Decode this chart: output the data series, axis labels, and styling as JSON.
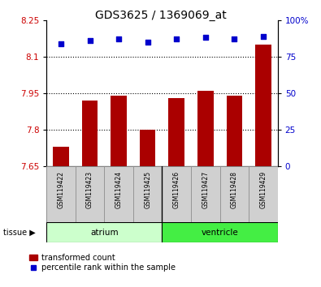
{
  "title": "GDS3625 / 1369069_at",
  "samples": [
    "GSM119422",
    "GSM119423",
    "GSM119424",
    "GSM119425",
    "GSM119426",
    "GSM119427",
    "GSM119428",
    "GSM119429"
  ],
  "transformed_count": [
    7.73,
    7.92,
    7.94,
    7.8,
    7.93,
    7.96,
    7.94,
    8.15
  ],
  "percentile_rank": [
    84,
    86,
    87,
    85,
    87,
    88,
    87,
    89
  ],
  "ylim_left": [
    7.65,
    8.25
  ],
  "ylim_right": [
    0,
    100
  ],
  "yticks_left": [
    7.65,
    7.8,
    7.95,
    8.1,
    8.25
  ],
  "yticks_right": [
    0,
    25,
    50,
    75,
    100
  ],
  "ytick_labels_left": [
    "7.65",
    "7.8",
    "7.95",
    "8.1",
    "8.25"
  ],
  "ytick_labels_right": [
    "0",
    "25",
    "50",
    "75",
    "100%"
  ],
  "bar_color": "#aa0000",
  "dot_color": "#0000cc",
  "bar_bottom": 7.65,
  "atrium_color": "#ccffcc",
  "ventricle_color": "#44ee44",
  "legend_bar_label": "transformed count",
  "legend_dot_label": "percentile rank within the sample",
  "tick_label_color_left": "#cc0000",
  "tick_label_color_right": "#0000cc",
  "grid_yticks": [
    7.8,
    7.95,
    8.1
  ]
}
